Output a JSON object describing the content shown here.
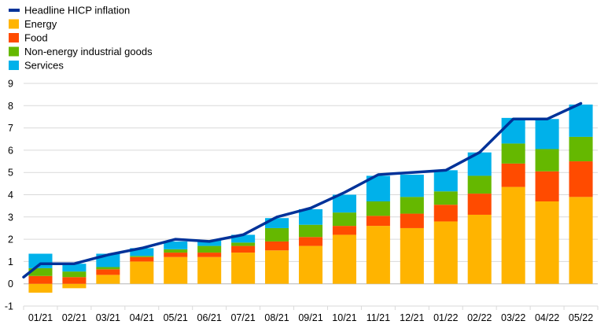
{
  "chart_data": {
    "type": "bar",
    "stacked": true,
    "categories": [
      "01/21",
      "02/21",
      "03/21",
      "04/21",
      "05/21",
      "06/21",
      "07/21",
      "08/21",
      "09/21",
      "10/21",
      "11/21",
      "12/21",
      "01/22",
      "02/22",
      "03/22",
      "04/22",
      "05/22"
    ],
    "ylim": [
      -1,
      9
    ],
    "yticks": [
      -1,
      0,
      1,
      2,
      3,
      4,
      5,
      6,
      7,
      8,
      9
    ],
    "grid": "horizontal",
    "legend_position": "top-left",
    "series": [
      {
        "name": "Energy",
        "type": "bar",
        "color": "#FFB400",
        "values": [
          -0.4,
          -0.2,
          0.4,
          1.0,
          1.2,
          1.2,
          1.4,
          1.5,
          1.7,
          2.2,
          2.6,
          2.5,
          2.8,
          3.1,
          4.35,
          3.7,
          3.9
        ]
      },
      {
        "name": "Food",
        "type": "bar",
        "color": "#FF4B00",
        "values": [
          0.35,
          0.3,
          0.25,
          0.2,
          0.2,
          0.2,
          0.3,
          0.4,
          0.4,
          0.4,
          0.45,
          0.65,
          0.75,
          0.95,
          1.05,
          1.35,
          1.6
        ]
      },
      {
        "name": "Non-energy industrial goods",
        "type": "bar",
        "color": "#65B800",
        "values": [
          0.35,
          0.25,
          0.1,
          0.05,
          0.15,
          0.3,
          0.15,
          0.6,
          0.55,
          0.6,
          0.65,
          0.75,
          0.6,
          0.8,
          0.9,
          1.0,
          1.1
        ]
      },
      {
        "name": "Services",
        "type": "bar",
        "color": "#00B1EA",
        "values": [
          0.65,
          0.35,
          0.6,
          0.35,
          0.35,
          0.25,
          0.35,
          0.45,
          0.7,
          0.8,
          1.15,
          1.0,
          0.95,
          1.05,
          1.15,
          1.35,
          1.45
        ]
      },
      {
        "name": "Headline HICP inflation",
        "type": "line",
        "color": "#003299",
        "values": [
          0.9,
          0.9,
          1.3,
          1.6,
          2.0,
          1.9,
          2.2,
          3.0,
          3.4,
          4.1,
          4.9,
          5.0,
          5.1,
          5.9,
          7.4,
          7.4,
          8.1
        ]
      }
    ]
  }
}
